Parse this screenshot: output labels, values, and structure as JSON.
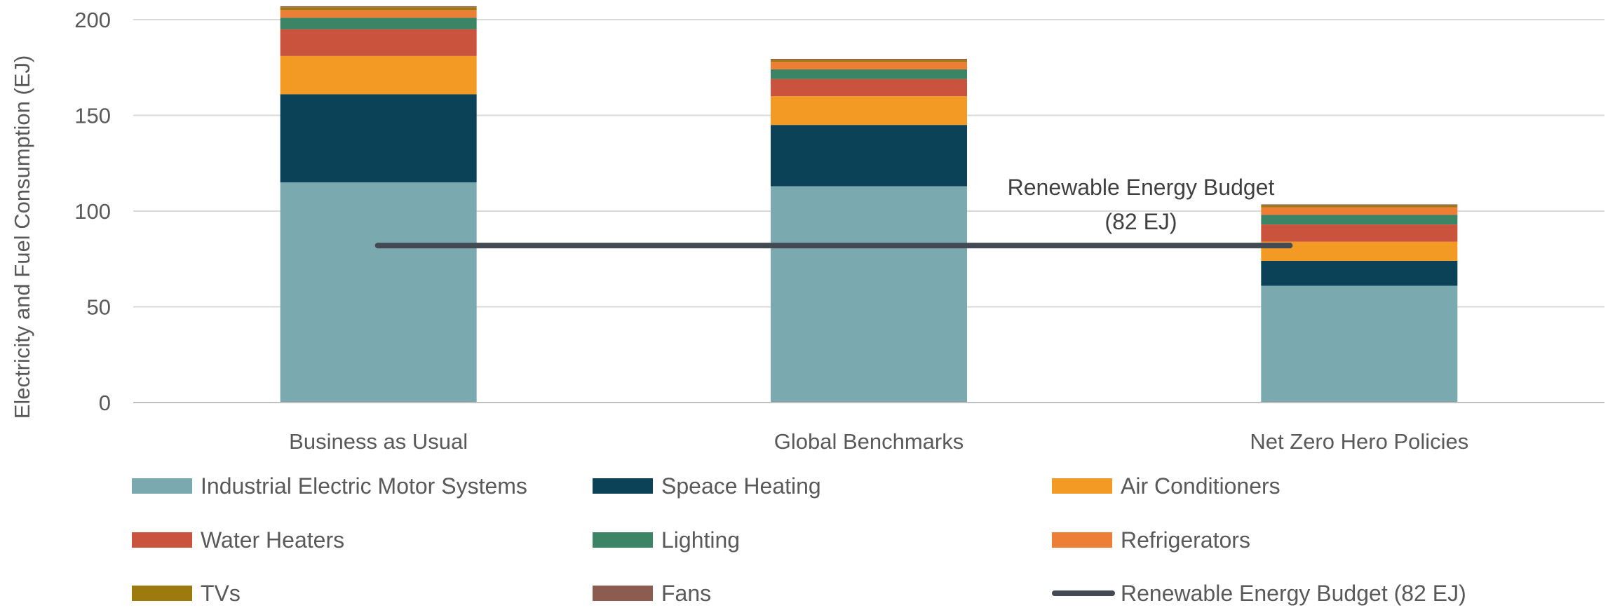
{
  "chart_data": {
    "type": "bar",
    "stacked": true,
    "categories": [
      "Business as Usual",
      "Global Benchmarks",
      "Net Zero Hero Policies"
    ],
    "ylabel": "Electricity and Fuel Consumption (EJ)",
    "xlabel": "",
    "ylim": [
      0,
      200
    ],
    "yticks": [
      0,
      50,
      100,
      150,
      200
    ],
    "grid": true,
    "legend_position": "bottom",
    "series": [
      {
        "name": "Industrial Electric Motor Systems",
        "color": "#7AA9B0",
        "values": [
          115,
          113,
          61
        ]
      },
      {
        "name": "Speace Heating",
        "color": "#0B4257",
        "values": [
          46,
          32,
          13
        ]
      },
      {
        "name": "Air Conditioners",
        "color": "#F29A23",
        "values": [
          20,
          15,
          10
        ]
      },
      {
        "name": "Water Heaters",
        "color": "#C9533D",
        "values": [
          14,
          9,
          9
        ]
      },
      {
        "name": "Lighting",
        "color": "#3C8466",
        "values": [
          6,
          5,
          5
        ]
      },
      {
        "name": "Refrigerators",
        "color": "#EC7F35",
        "values": [
          4,
          4,
          4
        ]
      },
      {
        "name": "TVs",
        "color": "#9C7A0E",
        "values": [
          1.5,
          1,
          1
        ]
      },
      {
        "name": "Fans",
        "color": "#8C5C50",
        "values": [
          0.5,
          0.5,
          0.5
        ]
      }
    ],
    "reference_line": {
      "name": "Renewable Energy Budget (82 EJ)",
      "value": 82,
      "color": "#434A54",
      "annotation": [
        "Renewable Energy Budget",
        "(82 EJ)"
      ]
    }
  }
}
